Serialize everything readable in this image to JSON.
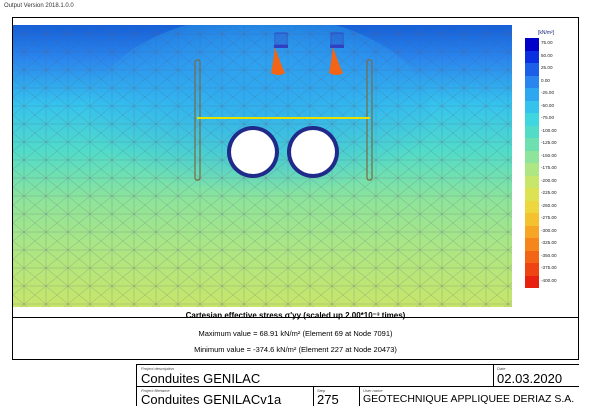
{
  "header": {
    "version": "Output Version 2018.1.0.0"
  },
  "legend": {
    "unit": "[kN/m²]",
    "levels": [
      {
        "label": "75.00",
        "color": "#0000c8"
      },
      {
        "label": "50.00",
        "color": "#0a2fe0"
      },
      {
        "label": "25.00",
        "color": "#1b5fe8"
      },
      {
        "label": "0.00",
        "color": "#2a86ee"
      },
      {
        "label": "-25.00",
        "color": "#2fa6f0"
      },
      {
        "label": "-50.00",
        "color": "#35c3ee"
      },
      {
        "label": "-75.00",
        "color": "#3fd6df"
      },
      {
        "label": "-100.00",
        "color": "#52dcc8"
      },
      {
        "label": "-125.00",
        "color": "#6ee0b0"
      },
      {
        "label": "-150.00",
        "color": "#8ee49a"
      },
      {
        "label": "-175.00",
        "color": "#aee683"
      },
      {
        "label": "-200.00",
        "color": "#c7e66a"
      },
      {
        "label": "-225.00",
        "color": "#dde252"
      },
      {
        "label": "-250.00",
        "color": "#eed73e"
      },
      {
        "label": "-275.00",
        "color": "#f4c22e"
      },
      {
        "label": "-300.00",
        "color": "#f6a624"
      },
      {
        "label": "-325.00",
        "color": "#f5861c"
      },
      {
        "label": "-350.00",
        "color": "#f26517"
      },
      {
        "label": "-375.00",
        "color": "#ee4312"
      },
      {
        "label": "-400.00",
        "color": "#e8200f"
      }
    ]
  },
  "caption": {
    "title": "Cartesian effective stress σ'yy (scaled up 2.00*10⁻³ times)",
    "max": "Maximum value = 68.91 kN/m² (Element 69 at Node 7091)",
    "min": "Minimum value = -374.6 kN/m² (Element 227 at Node 20473)"
  },
  "titleblock": {
    "project_description_label": "Project description",
    "project_description": "Conduites GENILAC",
    "date_label": "Date",
    "date": "02.03.2020",
    "project_filename_label": "Project filename",
    "project_filename": "Conduites GENILACv1a",
    "step_label": "Step",
    "step": "275",
    "user_label": "User name",
    "user": "GEOTECHNIQUE APPLIQUEE DERIAZ S.A."
  }
}
